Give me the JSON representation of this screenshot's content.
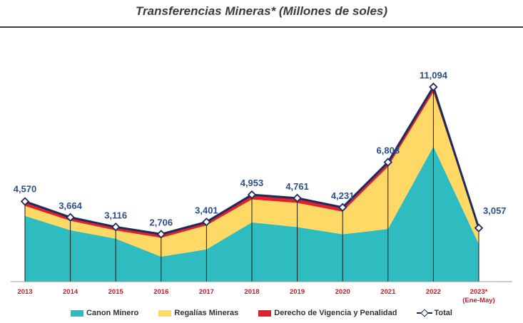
{
  "title": "Transferencias Mineras* (Millones de soles)",
  "chart_data": {
    "type": "area",
    "stacked": true,
    "categories": [
      "2013",
      "2014",
      "2015",
      "2016",
      "2017",
      "2018",
      "2019",
      "2020",
      "2021",
      "2022",
      "2023*"
    ],
    "category_note": "(Ene-May)",
    "series": [
      {
        "name": "Canon Minero",
        "color": "#2ebcc0",
        "values": [
          3750,
          2930,
          2450,
          1420,
          1840,
          3380,
          3110,
          2700,
          3000,
          7700,
          2150
        ]
      },
      {
        "name": "Regalías Mineras",
        "color": "#ffd966",
        "values": [
          570,
          540,
          470,
          1080,
          1370,
          1310,
          1380,
          1290,
          3550,
          3100,
          790
        ]
      },
      {
        "name": "Derecho de Vigencia y Penalidad",
        "color": "#e0202a",
        "values": [
          250,
          194,
          196,
          206,
          191,
          263,
          271,
          241,
          258,
          294,
          117
        ]
      }
    ],
    "total": {
      "name": "Total",
      "color": "#1f2a5c",
      "values": [
        4570,
        3664,
        3116,
        2706,
        3401,
        4953,
        4761,
        4231,
        6808,
        11094,
        3057
      ]
    },
    "total_labels": [
      "4,570",
      "3,664",
      "3,116",
      "2,706",
      "3,401",
      "4,953",
      "4,761",
      "4,231",
      "6,808",
      "11,094",
      "3,057"
    ],
    "ylim": [
      0,
      11600
    ]
  },
  "legend": {
    "canon": "Canon Minero",
    "regalias": "Regalías Mineras",
    "derecho": "Derecho de Vigencia y Penalidad",
    "total": "Total"
  }
}
